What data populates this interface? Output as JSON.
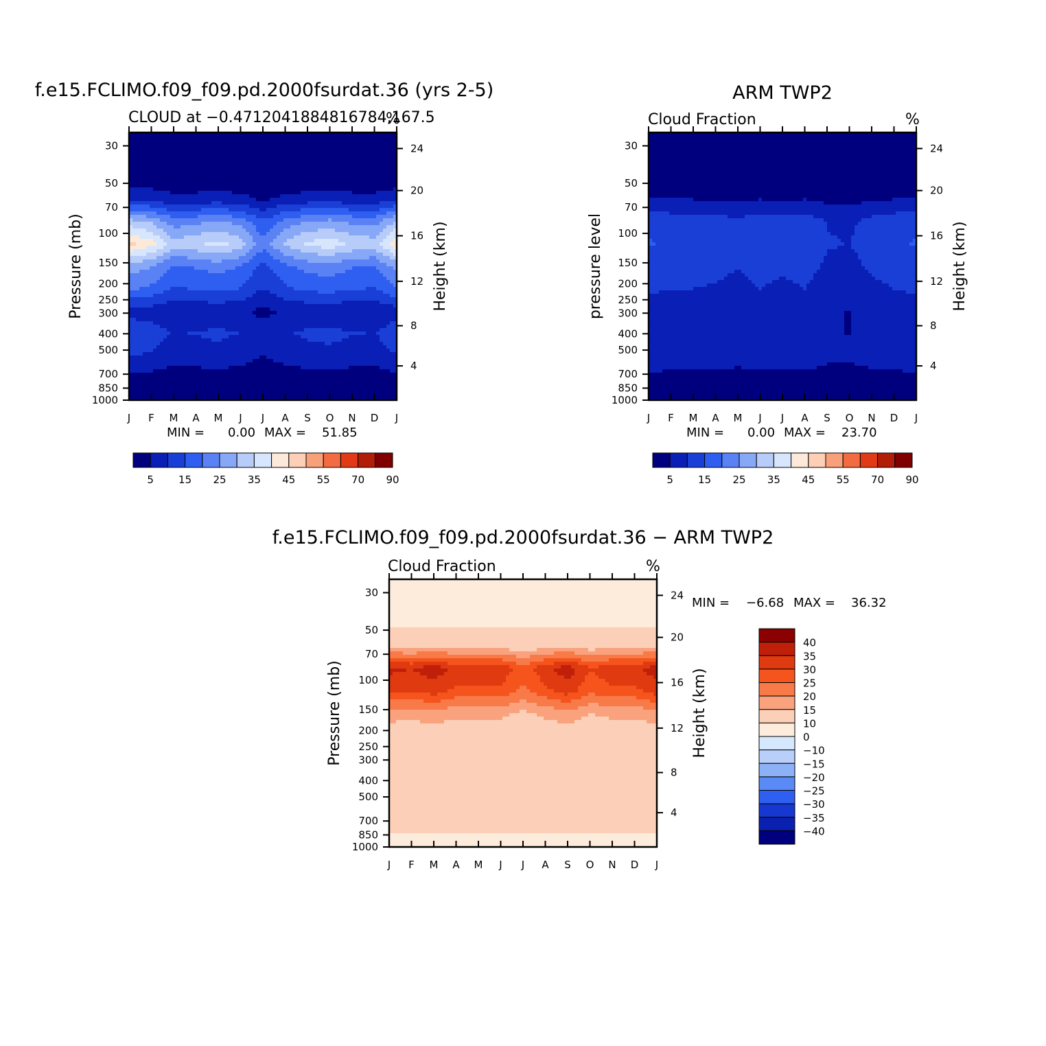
{
  "chart_data": [
    {
      "type": "heatmap",
      "title": "f.e15.FCLIMO.f09_f09.pd.2000fsurdat.36 (yrs 2-5)",
      "subtitle": "CLOUD at −0.4712041884816784,167.5",
      "units": "%",
      "ylabel": "Pressure (mb)",
      "y2label": "Height (km)",
      "x_ticks": [
        "J",
        "F",
        "M",
        "A",
        "M",
        "J",
        "J",
        "A",
        "S",
        "O",
        "N",
        "D",
        "J"
      ],
      "y_ticks": [
        "30",
        "50",
        "70",
        "100",
        "150",
        "200",
        "250",
        "300",
        "400",
        "500",
        "700",
        "850",
        "1000"
      ],
      "y2_ticks": [
        "24",
        "20",
        "16",
        "12",
        "8",
        "4"
      ],
      "min_label": "MIN =",
      "min_value": "0.00",
      "max_label": "MAX =",
      "max_value": "51.85",
      "colorbar_labels": [
        "5",
        "15",
        "25",
        "35",
        "45",
        "55",
        "70",
        "90"
      ],
      "colorbar_colors": [
        "#00007f",
        "#0a1fb5",
        "#1a3fd6",
        "#2e5ff0",
        "#5a82f5",
        "#87a8f7",
        "#b8ccf9",
        "#d7e6fd",
        "#fde9d9",
        "#fccfb6",
        "#f8a07a",
        "#f36b40",
        "#e03a17",
        "#b21d07",
        "#800000"
      ],
      "profile_levels": [
        1,
        1,
        1,
        8,
        28,
        40,
        24,
        18,
        7,
        12,
        9,
        3,
        1
      ],
      "profile_months": [
        1.15,
        1.05,
        0.8,
        0.85,
        0.92,
        0.82,
        0.55,
        0.78,
        0.9,
        0.95,
        0.85,
        0.82,
        1.1
      ]
    },
    {
      "type": "heatmap",
      "title": "ARM TWP2",
      "subtitle": "Cloud Fraction",
      "units": "%",
      "ylabel": "pressure level",
      "y2label": "Height (km)",
      "x_ticks": [
        "J",
        "F",
        "M",
        "A",
        "M",
        "J",
        "J",
        "A",
        "S",
        "O",
        "N",
        "D",
        "J"
      ],
      "y_ticks": [
        "30",
        "50",
        "70",
        "100",
        "150",
        "200",
        "250",
        "300",
        "400",
        "500",
        "700",
        "850",
        "1000"
      ],
      "y2_ticks": [
        "24",
        "20",
        "16",
        "12",
        "8",
        "4"
      ],
      "min_label": "MIN =",
      "min_value": "0.00",
      "max_label": "MAX =",
      "max_value": "23.70",
      "colorbar_labels": [
        "5",
        "15",
        "25",
        "35",
        "45",
        "55",
        "70",
        "90"
      ],
      "colorbar_colors": [
        "#00007f",
        "#0a1fb5",
        "#1a3fd6",
        "#2e5ff0",
        "#5a82f5",
        "#87a8f7",
        "#b8ccf9",
        "#d7e6fd",
        "#fde9d9",
        "#fccfb6",
        "#f8a07a",
        "#f36b40",
        "#e03a17",
        "#b21d07",
        "#800000"
      ],
      "profile_levels": [
        1,
        1,
        1,
        5,
        13,
        14,
        12,
        10,
        7,
        7,
        9,
        3,
        1
      ],
      "profile_months": [
        1.1,
        1.0,
        1.0,
        0.95,
        0.85,
        1.0,
        0.9,
        1.0,
        0.75,
        0.7,
        0.9,
        1.0,
        1.1
      ]
    },
    {
      "type": "heatmap",
      "title": "f.e15.FCLIMO.f09_f09.pd.2000fsurdat.36 − ARM TWP2",
      "subtitle": "Cloud Fraction",
      "units": "%",
      "ylabel": "Pressure (mb)",
      "y2label": "Height (km)",
      "x_ticks": [
        "J",
        "F",
        "M",
        "A",
        "M",
        "J",
        "J",
        "A",
        "S",
        "O",
        "N",
        "D",
        "J"
      ],
      "y_ticks": [
        "30",
        "50",
        "70",
        "100",
        "150",
        "200",
        "250",
        "300",
        "400",
        "500",
        "700",
        "850",
        "1000"
      ],
      "y2_ticks": [
        "24",
        "20",
        "16",
        "12",
        "8",
        "4"
      ],
      "min_label": "MIN =",
      "min_value": "−6.68",
      "max_label": "MAX =",
      "max_value": "36.32",
      "colorbar_labels": [
        "40",
        "35",
        "30",
        "25",
        "20",
        "15",
        "10",
        "0",
        "−10",
        "−15",
        "−20",
        "−25",
        "−30",
        "−35",
        "−40"
      ],
      "colorbar_colors": [
        "#8b0000",
        "#c0200a",
        "#e03a10",
        "#f5541d",
        "#f77a48",
        "#f9a27d",
        "#fcd0b8",
        "#fdebdc",
        "#d6e8fd",
        "#b8cffa",
        "#8cb1f7",
        "#5a8af5",
        "#2e5ff0",
        "#1638d0",
        "#0a20b0",
        "#00007f"
      ],
      "profile_levels": [
        -3,
        -3,
        -2,
        8,
        30,
        25,
        12,
        6,
        2,
        1,
        2,
        1,
        -2
      ],
      "profile_months": [
        1.05,
        1.0,
        1.1,
        0.95,
        0.95,
        0.95,
        0.75,
        0.95,
        1.1,
        0.85,
        0.95,
        0.95,
        1.1
      ]
    }
  ]
}
